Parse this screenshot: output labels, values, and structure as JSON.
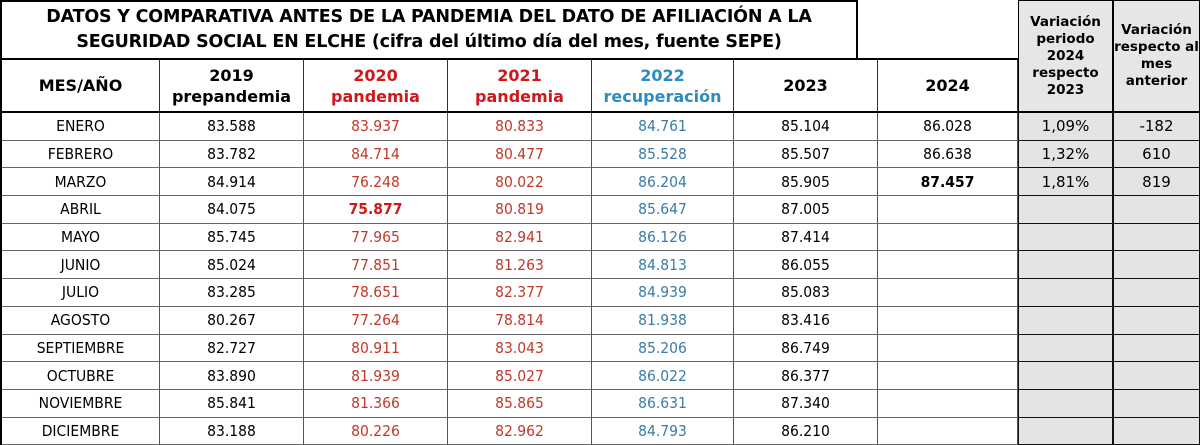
{
  "title": {
    "line1": "DATOS Y COMPARATIVA ANTES DE LA PANDEMIA DEL DATO DE AFILIACIÓN A LA",
    "line2": "SEGURIDAD SOCIAL EN ELCHE  (cifra del último día del mes, fuente SEPE)"
  },
  "colors": {
    "pandemia": "#c0392b",
    "recuperacion": "#3a7ca5",
    "variation_bg": "#e4e4e4"
  },
  "headers": [
    {
      "year": "MES/AÑO",
      "sub": ""
    },
    {
      "year": "2019",
      "sub": "prepandemia"
    },
    {
      "year": "2020",
      "sub": "pandemia"
    },
    {
      "year": "2021",
      "sub": "pandemia"
    },
    {
      "year": "2022",
      "sub": "recuperación"
    },
    {
      "year": "2023",
      "sub": ""
    },
    {
      "year": "2024",
      "sub": ""
    }
  ],
  "variation_headers": [
    "Variación periodo 2024 respecto 2023",
    "Variación respecto al mes anterior"
  ],
  "rows": [
    {
      "month": "ENERO",
      "v": [
        "83.588",
        "83.937",
        "80.833",
        "84.761",
        "85.104",
        "86.028"
      ],
      "var_pct": "1,09%",
      "var_month": "-182"
    },
    {
      "month": "FEBRERO",
      "v": [
        "83.782",
        "84.714",
        "80.477",
        "85.528",
        "85.507",
        "86.638"
      ],
      "var_pct": "1,32%",
      "var_month": "610"
    },
    {
      "month": "MARZO",
      "v": [
        "84.914",
        "76.248",
        "80.022",
        "86.204",
        "85.905",
        "87.457"
      ],
      "var_pct": "1,81%",
      "var_month": "819"
    },
    {
      "month": "ABRIL",
      "v": [
        "84.075",
        "75.877",
        "80.819",
        "85.647",
        "87.005",
        ""
      ],
      "var_pct": "",
      "var_month": ""
    },
    {
      "month": "MAYO",
      "v": [
        "85.745",
        "77.965",
        "82.941",
        "86.126",
        "87.414",
        ""
      ],
      "var_pct": "",
      "var_month": ""
    },
    {
      "month": "JUNIO",
      "v": [
        "85.024",
        "77.851",
        "81.263",
        "84.813",
        "86.055",
        ""
      ],
      "var_pct": "",
      "var_month": ""
    },
    {
      "month": "JULIO",
      "v": [
        "83.285",
        "78.651",
        "82.377",
        "84.939",
        "85.083",
        ""
      ],
      "var_pct": "",
      "var_month": ""
    },
    {
      "month": "AGOSTO",
      "v": [
        "80.267",
        "77.264",
        "78.814",
        "81.938",
        "83.416",
        ""
      ],
      "var_pct": "",
      "var_month": ""
    },
    {
      "month": "SEPTIEMBRE",
      "v": [
        "82.727",
        "80.911",
        "83.043",
        "85.206",
        "86.749",
        ""
      ],
      "var_pct": "",
      "var_month": ""
    },
    {
      "month": "OCTUBRE",
      "v": [
        "83.890",
        "81.939",
        "85.027",
        "86.022",
        "86.377",
        ""
      ],
      "var_pct": "",
      "var_month": ""
    },
    {
      "month": "NOVIEMBRE",
      "v": [
        "85.841",
        "81.366",
        "85.865",
        "86.631",
        "87.340",
        ""
      ],
      "var_pct": "",
      "var_month": ""
    },
    {
      "month": "DICIEMBRE",
      "v": [
        "83.188",
        "80.226",
        "82.962",
        "84.793",
        "86.210",
        ""
      ],
      "var_pct": "",
      "var_month": ""
    }
  ],
  "highlights": {
    "minimum_2020": "75.877",
    "latest_2024": "87.457"
  }
}
